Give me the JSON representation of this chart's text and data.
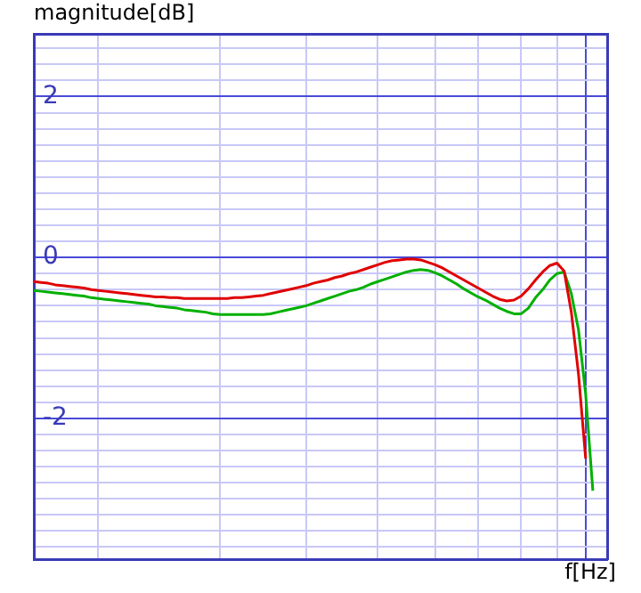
{
  "chart_data": {
    "type": "line",
    "xlabel": "f[Hz]",
    "ylabel": "magnitude[dB]",
    "grid": true,
    "legend": false,
    "marker": "none",
    "tick_labels": "y",
    "categories": [
      null,
      null,
      null,
      null,
      null,
      null,
      null,
      null,
      null,
      null,
      null,
      null,
      null,
      null,
      null,
      null,
      null,
      null,
      null,
      null,
      null,
      null,
      null,
      null,
      null,
      null,
      null,
      null,
      null,
      null,
      null,
      null,
      null,
      null,
      null,
      null,
      null,
      null,
      null,
      null,
      null,
      null,
      null,
      null,
      null,
      null,
      null,
      null,
      null,
      null,
      null,
      null,
      null,
      null,
      null,
      null,
      null,
      null,
      null,
      null,
      null,
      null,
      null,
      null,
      null,
      null,
      null,
      null,
      null,
      null,
      null,
      null,
      null,
      null,
      null,
      null,
      null,
      null,
      null,
      null,
      null
    ],
    "ylim": [
      -3.75,
      2.78
    ],
    "yticks": [
      {
        "value": -3.6,
        "label": null
      },
      {
        "value": -3.4,
        "label": null
      },
      {
        "value": -3.2,
        "label": null
      },
      {
        "value": -3,
        "label": null
      },
      {
        "value": -2.8,
        "label": null
      },
      {
        "value": -2.6,
        "label": null
      },
      {
        "value": -2.4,
        "label": null
      },
      {
        "value": -2.2,
        "label": null
      },
      -2,
      {
        "value": -1.8,
        "label": null
      },
      {
        "value": -1.6,
        "label": null
      },
      {
        "value": -1.4,
        "label": null
      },
      {
        "value": -1.2,
        "label": null
      },
      {
        "value": -1,
        "label": null
      },
      {
        "value": -0.8,
        "label": null
      },
      {
        "value": -0.6,
        "label": null
      },
      {
        "value": -0.4,
        "label": null
      },
      {
        "value": -0.2,
        "label": null
      },
      0,
      {
        "value": 0.2,
        "label": null
      },
      {
        "value": 0.4,
        "label": null
      },
      {
        "value": 0.6,
        "label": null
      },
      {
        "value": 0.8,
        "label": null
      },
      {
        "value": 1,
        "label": null
      },
      {
        "value": 1.2,
        "label": null
      },
      {
        "value": 1.4,
        "label": null
      },
      {
        "value": 1.6,
        "label": null
      },
      {
        "value": 1.8,
        "label": null
      },
      2,
      {
        "value": 2.2,
        "label": null
      },
      {
        "value": 2.4,
        "label": null
      },
      {
        "value": 2.6,
        "label": null
      }
    ],
    "series": [
      {
        "color": "#e00000",
        "values": [
          -0.3,
          -0.31,
          -0.32,
          -0.34,
          -0.35,
          -0.36,
          -0.37,
          -0.38,
          -0.4,
          -0.41,
          -0.42,
          -0.43,
          -0.44,
          -0.45,
          -0.46,
          -0.47,
          -0.48,
          -0.49,
          -0.49,
          -0.5,
          -0.5,
          -0.51,
          -0.51,
          -0.51,
          -0.51,
          -0.51,
          -0.51,
          -0.51,
          -0.5,
          -0.5,
          -0.49,
          -0.48,
          -0.47,
          -0.45,
          -0.43,
          -0.41,
          -0.39,
          -0.37,
          -0.35,
          -0.32,
          -0.3,
          -0.28,
          -0.25,
          -0.23,
          -0.2,
          -0.18,
          -0.15,
          -0.12,
          -0.09,
          -0.06,
          -0.04,
          -0.03,
          -0.02,
          -0.02,
          -0.03,
          -0.06,
          -0.09,
          -0.13,
          -0.18,
          -0.23,
          -0.28,
          -0.33,
          -0.38,
          -0.43,
          -0.48,
          -0.52,
          -0.54,
          -0.53,
          -0.48,
          -0.39,
          -0.28,
          -0.18,
          -0.1,
          -0.07,
          -0.17,
          -0.68,
          -1.45,
          -2.5,
          null,
          null,
          null
        ]
      },
      {
        "color": "#00b000",
        "values": [
          -0.41,
          -0.42,
          -0.43,
          -0.44,
          -0.45,
          -0.46,
          -0.47,
          -0.48,
          -0.5,
          -0.51,
          -0.52,
          -0.53,
          -0.54,
          -0.55,
          -0.56,
          -0.57,
          -0.58,
          -0.6,
          -0.61,
          -0.62,
          -0.63,
          -0.65,
          -0.66,
          -0.67,
          -0.68,
          -0.7,
          -0.71,
          -0.71,
          -0.71,
          -0.71,
          -0.71,
          -0.71,
          -0.71,
          -0.7,
          -0.68,
          -0.66,
          -0.64,
          -0.62,
          -0.6,
          -0.57,
          -0.54,
          -0.51,
          -0.48,
          -0.45,
          -0.42,
          -0.4,
          -0.37,
          -0.33,
          -0.3,
          -0.27,
          -0.24,
          -0.21,
          -0.18,
          -0.16,
          -0.15,
          -0.16,
          -0.19,
          -0.23,
          -0.28,
          -0.33,
          -0.39,
          -0.44,
          -0.49,
          -0.53,
          -0.58,
          -0.63,
          -0.67,
          -0.7,
          -0.7,
          -0.63,
          -0.5,
          -0.4,
          -0.28,
          -0.2,
          -0.18,
          -0.45,
          -0.9,
          -1.7,
          -2.9,
          null,
          null
        ]
      }
    ]
  }
}
